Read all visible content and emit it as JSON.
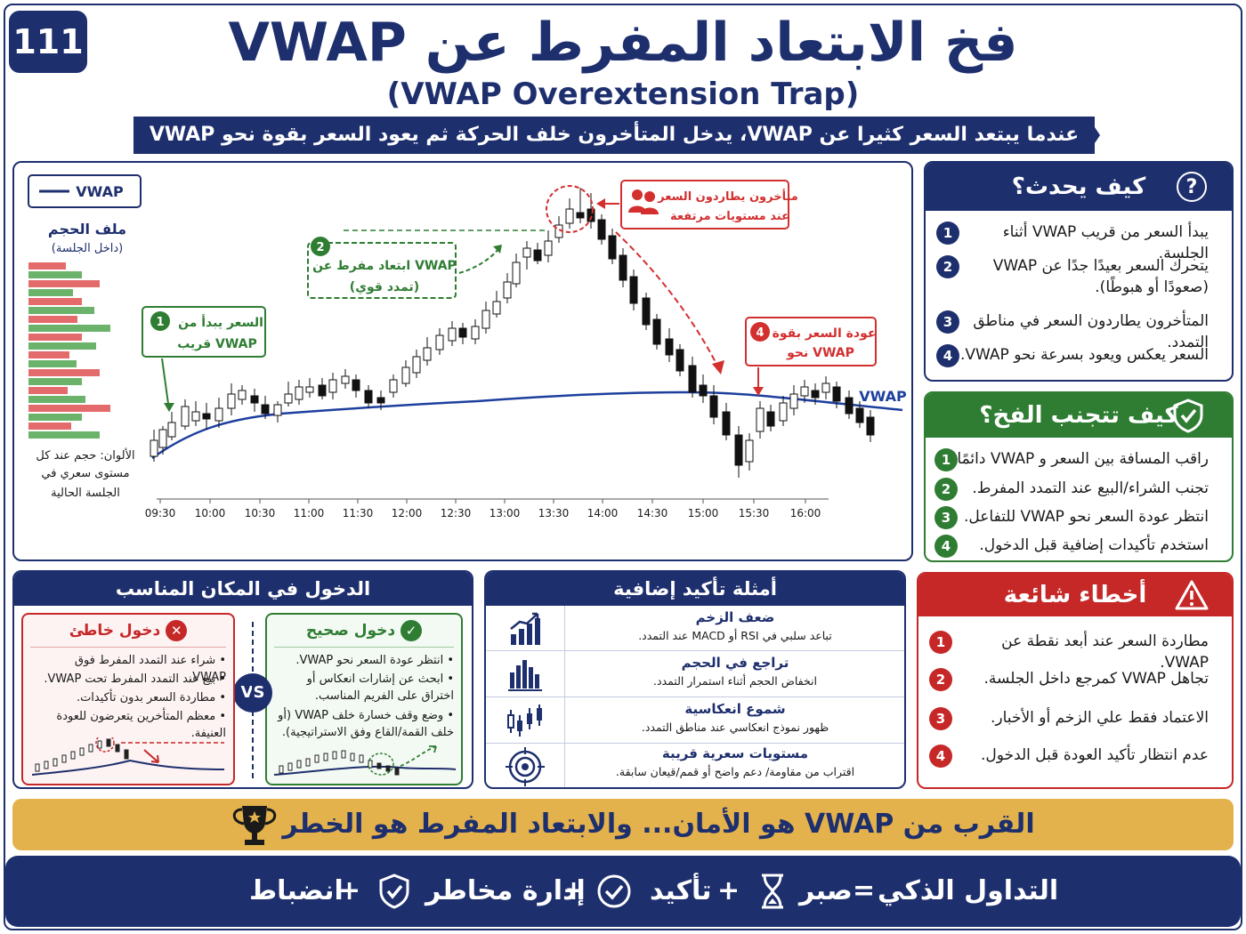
{
  "badge": "111",
  "title_ar": "فخ الابتعاد المفرط عن VWAP",
  "title_en": "(VWAP Overextension Trap)",
  "subtitle": "عندما يبتعد السعر كثيرا عن VWAP، يدخل المتأخرون خلف الحركة ثم يعود السعر بقوة نحو VWAP",
  "chart": {
    "legend": "VWAP",
    "vp_title": "ملف الحجم",
    "vp_sub": "(داخل الجلسة)",
    "vp_note_1": "الألوان: حجم عند كل",
    "vp_note_2": "مستوى سعري في",
    "vp_note_3": "الجلسة الحالية",
    "vwap_label": "VWAP",
    "callout1": {
      "num": "1",
      "l1": "السعر يبدأ من",
      "l2": "قريب VWAP"
    },
    "callout2": {
      "num": "2",
      "l1": "ابتعاد مفرط عن VWAP",
      "l2": "(تمدد قوي)"
    },
    "callout3": {
      "l1": "متأخرون يطاردون السعر",
      "l2": "عند مستويات مرتفعة"
    },
    "callout4": {
      "num": "4",
      "l1": "عودة السعر بقوة",
      "l2": "نحو VWAP"
    }
  },
  "chart_data": {
    "type": "candlestick",
    "x_ticks": [
      "09:30",
      "10:00",
      "10:30",
      "11:00",
      "11:30",
      "12:00",
      "12:30",
      "13:00",
      "13:30",
      "14:00",
      "14:30",
      "15:00",
      "15:30",
      "16:00"
    ],
    "series": [
      {
        "name": "VWAP"
      }
    ],
    "grid": false
  },
  "how": {
    "title": "كيف يحدث؟",
    "items": [
      {
        "n": "1",
        "t": "يبدأ السعر من قريب VWAP أثناء الجلسة."
      },
      {
        "n": "2",
        "t": "يتحرك السعر بعيدًا جدًا عن VWAP",
        "t2": "(صعودًا أو هبوطًا)."
      },
      {
        "n": "3",
        "t": "المتأخرون يطاردون السعر في مناطق التمدد."
      },
      {
        "n": "4",
        "t": "السعر يعكس ويعود بسرعة نحو VWAP."
      }
    ]
  },
  "avoid": {
    "title": "كيف تتجنب الفخ؟",
    "items": [
      {
        "n": "1",
        "t": "راقب المسافة بين السعر و VWAP دائمًا."
      },
      {
        "n": "2",
        "t": "تجنب الشراء/البيع عند التمدد المفرط."
      },
      {
        "n": "3",
        "t": "انتظر عودة السعر نحو VWAP للتفاعل."
      },
      {
        "n": "4",
        "t": "استخدم تأكيدات إضافية قبل الدخول."
      }
    ]
  },
  "mistakes": {
    "title": "أخطاء شائعة",
    "items": [
      {
        "n": "1",
        "t": "مطاردة السعر عند أبعد نقطة عن VWAP."
      },
      {
        "n": "2",
        "t": "تجاهل VWAP كمرجع داخل الجلسة."
      },
      {
        "n": "3",
        "t": "الاعتماد فقط علي الزخم أو الأخبار."
      },
      {
        "n": "4",
        "t": "عدم انتظار تأكيد العودة قبل الدخول."
      }
    ]
  },
  "entry": {
    "title": "الدخول في المكان المناسب",
    "vs": "VS",
    "right_title": "دخول صحيح",
    "right_items": [
      "انتظر عودة السعر نحو VWAP.",
      "ابحث عن إشارات انعكاس أو اختراق على الفريم المناسب.",
      "وضع وقف خسارة خلف VWAP (أو خلف القمة/القاع وفق الاستراتيجية)."
    ],
    "left_title": "دخول خاطئ",
    "left_items": [
      "شراء عند التمدد المفرط فوق VWAP.",
      "بيع عند التمدد المفرط تحت VWAP.",
      "مطاردة السعر بدون تأكيدات.",
      "معظم المتأخرين يتعرضون للعودة العنيفة."
    ]
  },
  "confirm": {
    "title": "أمثلة تأكيد إضافية",
    "rows": [
      {
        "h": "ضعف الزخم",
        "d": "تباعد سلبي في RSI أو MACD عند التمدد."
      },
      {
        "h": "تراجع في الحجم",
        "d": "انخفاض الحجم أثناء استمرار التمدد."
      },
      {
        "h": "شموع انعكاسية",
        "d": "ظهور نموذج انعكاسي عند مناطق التمدد."
      },
      {
        "h": "مستويات سعرية قريبة",
        "d": "اقتراب من مقاومة/ دعم واضح أو قمم/قيعان سابقة."
      }
    ]
  },
  "gold": "القرب من VWAP هو الأمان... والابتعاد المفرط هو الخطر",
  "footer": {
    "smart": "التداول الذكي",
    "eq": "=",
    "patience": "صبر",
    "plus": "+",
    "confirm": "تأكيد",
    "risk": "إدارة مخاطر",
    "discipline": "انضباط"
  }
}
